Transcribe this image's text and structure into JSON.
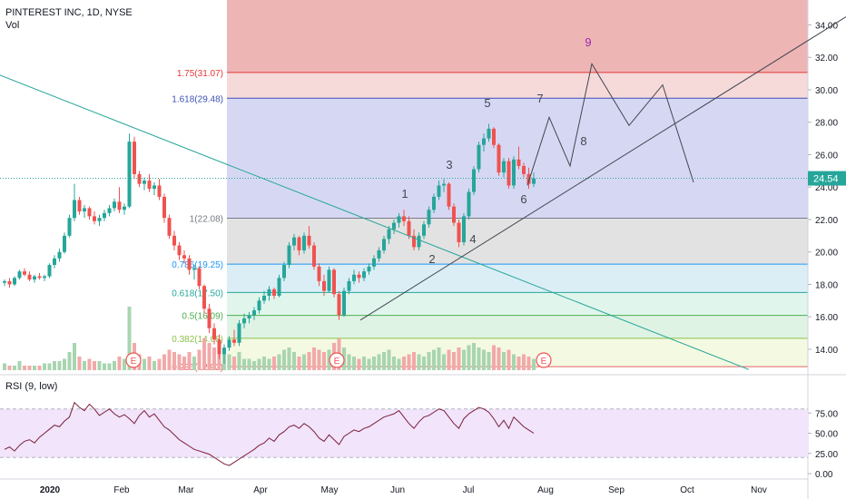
{
  "header": {
    "symbol_line": "PINTEREST INC, 1D, NYSE",
    "volume_label": "Vol",
    "rsi_label": "RSI (9, low)"
  },
  "chart_data": {
    "type": "candlestick",
    "title": "PINTEREST INC, 1D, NYSE",
    "price_axis": {
      "ticks": [
        "34.00",
        "32.00",
        "30.00",
        "28.00",
        "26.00",
        "24.00",
        "22.00",
        "20.00",
        "18.00",
        "16.00",
        "14.00"
      ],
      "ylim": [
        12.6,
        35.2
      ],
      "current_price": "24.54"
    },
    "rsi_axis": {
      "ticks": [
        "75.00",
        "50.00",
        "25.00",
        "0.00"
      ],
      "ylim": [
        0,
        100
      ],
      "band": [
        20,
        80
      ]
    },
    "time_axis": [
      "2020",
      "Feb",
      "Mar",
      "Apr",
      "May",
      "Jun",
      "Jul",
      "Aug",
      "Sep",
      "Oct",
      "Nov"
    ],
    "fib_levels": [
      {
        "label": "0.236(12.93)",
        "value": 12.93,
        "color": "#e06666"
      },
      {
        "label": "0.382(14.68)",
        "value": 14.68,
        "color": "#8bc34a"
      },
      {
        "label": "0.5(16.09)",
        "value": 16.09,
        "color": "#4caf50"
      },
      {
        "label": "0.618(17.50)",
        "value": 17.5,
        "color": "#26a69a"
      },
      {
        "label": "0.786(19.25)",
        "value": 19.25,
        "color": "#2196f3"
      },
      {
        "label": "1(22.08)",
        "value": 22.08,
        "color": "#787b86"
      },
      {
        "label": "1.618(29.48)",
        "value": 29.48,
        "color": "#3f51b5"
      },
      {
        "label": "1.75(31.07)",
        "value": 31.07,
        "color": "#e53935"
      }
    ],
    "wave_labels": [
      {
        "text": "1",
        "x": "late May",
        "y": 23.1
      },
      {
        "text": "2",
        "x": "early Jun",
        "y": 19.2
      },
      {
        "text": "3",
        "x": "mid Jun",
        "y": 24.8
      },
      {
        "text": "4",
        "x": "late Jun",
        "y": 20.0
      },
      {
        "text": "5",
        "x": "early Jul",
        "y": 27.6
      },
      {
        "text": "6",
        "x": "late Jul",
        "y": 23.2
      },
      {
        "text": "7",
        "x": "early Aug",
        "y": 28.4
      },
      {
        "text": "8",
        "x": "mid Aug",
        "y": 26.2
      },
      {
        "text": "9",
        "x": "late Aug",
        "y": 33.3
      }
    ],
    "earnings_markers": [
      "E",
      "E",
      "E"
    ],
    "candles": [
      [
        18.1,
        18.3,
        17.9,
        18.2
      ],
      [
        18.2,
        18.4,
        17.8,
        18.0
      ],
      [
        18.0,
        18.5,
        17.9,
        18.4
      ],
      [
        18.4,
        18.9,
        18.3,
        18.8
      ],
      [
        18.8,
        19.0,
        18.5,
        18.6
      ],
      [
        18.6,
        18.8,
        18.2,
        18.3
      ],
      [
        18.3,
        18.6,
        18.1,
        18.5
      ],
      [
        18.5,
        18.7,
        18.3,
        18.4
      ],
      [
        18.4,
        18.6,
        18.2,
        18.5
      ],
      [
        18.5,
        19.3,
        18.4,
        19.2
      ],
      [
        19.2,
        19.8,
        19.0,
        19.6
      ],
      [
        19.6,
        20.2,
        19.4,
        20.0
      ],
      [
        20.0,
        21.2,
        19.9,
        21.0
      ],
      [
        21.0,
        22.3,
        20.9,
        22.1
      ],
      [
        22.1,
        24.2,
        21.9,
        23.2
      ],
      [
        23.2,
        23.4,
        22.3,
        22.5
      ],
      [
        22.5,
        22.9,
        22.1,
        22.7
      ],
      [
        22.7,
        22.8,
        22.0,
        22.2
      ],
      [
        22.2,
        22.5,
        21.7,
        21.9
      ],
      [
        21.9,
        22.3,
        21.6,
        22.1
      ],
      [
        22.1,
        22.6,
        21.9,
        22.4
      ],
      [
        22.4,
        22.9,
        22.2,
        22.7
      ],
      [
        22.7,
        23.3,
        22.5,
        23.1
      ],
      [
        23.1,
        24.0,
        22.4,
        22.6
      ],
      [
        22.6,
        23.0,
        22.3,
        22.8
      ],
      [
        22.8,
        27.3,
        22.7,
        26.8
      ],
      [
        26.8,
        27.1,
        24.5,
        24.8
      ],
      [
        24.8,
        25.0,
        24.0,
        24.2
      ],
      [
        24.2,
        24.6,
        23.8,
        24.4
      ],
      [
        24.4,
        24.8,
        23.7,
        23.9
      ],
      [
        23.9,
        24.3,
        23.5,
        24.1
      ],
      [
        24.1,
        24.5,
        23.2,
        23.4
      ],
      [
        23.4,
        23.6,
        21.8,
        22.1
      ],
      [
        22.1,
        22.3,
        20.8,
        21.0
      ],
      [
        21.0,
        21.3,
        20.1,
        20.4
      ],
      [
        20.4,
        20.6,
        19.5,
        19.8
      ],
      [
        19.8,
        20.1,
        19.3,
        19.6
      ],
      [
        19.6,
        19.8,
        18.6,
        18.9
      ],
      [
        18.9,
        19.2,
        18.3,
        19.0
      ],
      [
        19.0,
        19.1,
        17.7,
        17.9
      ],
      [
        17.9,
        18.0,
        16.2,
        16.5
      ],
      [
        16.5,
        16.8,
        15.0,
        15.3
      ],
      [
        15.3,
        15.6,
        14.3,
        14.6
      ],
      [
        14.6,
        14.9,
        13.4,
        13.7
      ],
      [
        13.7,
        14.3,
        13.1,
        14.1
      ],
      [
        14.1,
        14.8,
        13.9,
        14.6
      ],
      [
        14.6,
        15.2,
        14.2,
        14.4
      ],
      [
        14.4,
        15.8,
        14.2,
        15.6
      ],
      [
        15.6,
        16.2,
        15.3,
        15.9
      ],
      [
        15.9,
        16.3,
        15.6,
        16.1
      ],
      [
        16.1,
        16.6,
        15.8,
        16.4
      ],
      [
        16.4,
        17.2,
        16.2,
        17.0
      ],
      [
        17.0,
        17.6,
        16.8,
        17.3
      ],
      [
        17.3,
        17.9,
        17.0,
        17.7
      ],
      [
        17.7,
        17.8,
        17.1,
        17.3
      ],
      [
        17.3,
        18.6,
        17.2,
        18.4
      ],
      [
        18.4,
        19.4,
        18.2,
        19.2
      ],
      [
        19.2,
        20.6,
        19.0,
        20.4
      ],
      [
        20.4,
        21.1,
        20.1,
        20.9
      ],
      [
        20.9,
        21.0,
        19.8,
        20.1
      ],
      [
        20.1,
        21.2,
        19.9,
        21.0
      ],
      [
        21.0,
        21.6,
        20.2,
        20.4
      ],
      [
        20.4,
        20.6,
        18.9,
        19.1
      ],
      [
        19.1,
        19.3,
        17.9,
        18.2
      ],
      [
        18.2,
        18.6,
        17.3,
        17.6
      ],
      [
        17.6,
        19.1,
        17.5,
        18.9
      ],
      [
        18.9,
        19.0,
        17.2,
        17.4
      ],
      [
        17.4,
        17.6,
        15.8,
        16.1
      ],
      [
        16.1,
        17.8,
        16.0,
        17.6
      ],
      [
        17.6,
        18.4,
        17.4,
        18.2
      ],
      [
        18.2,
        18.9,
        18.0,
        18.6
      ],
      [
        18.6,
        18.8,
        18.1,
        18.4
      ],
      [
        18.4,
        19.0,
        18.2,
        18.8
      ],
      [
        18.8,
        19.3,
        18.6,
        19.1
      ],
      [
        19.1,
        19.8,
        18.9,
        19.6
      ],
      [
        19.6,
        20.3,
        19.4,
        20.1
      ],
      [
        20.1,
        21.0,
        19.9,
        20.8
      ],
      [
        20.8,
        21.6,
        20.5,
        21.4
      ],
      [
        21.4,
        22.0,
        21.1,
        21.8
      ],
      [
        21.8,
        22.4,
        21.5,
        22.2
      ],
      [
        22.2,
        22.6,
        21.6,
        21.9
      ],
      [
        21.9,
        22.2,
        20.8,
        21.0
      ],
      [
        21.0,
        21.4,
        20.1,
        20.3
      ],
      [
        20.3,
        21.2,
        20.1,
        21.0
      ],
      [
        21.0,
        21.9,
        20.8,
        21.7
      ],
      [
        21.7,
        22.8,
        21.5,
        22.6
      ],
      [
        22.6,
        23.6,
        22.4,
        23.4
      ],
      [
        23.4,
        24.4,
        23.2,
        24.1
      ],
      [
        24.1,
        24.5,
        23.7,
        24.2
      ],
      [
        24.2,
        24.3,
        22.6,
        22.8
      ],
      [
        22.8,
        23.0,
        21.6,
        21.8
      ],
      [
        21.8,
        22.0,
        20.3,
        20.6
      ],
      [
        20.6,
        22.4,
        20.4,
        22.2
      ],
      [
        22.2,
        23.9,
        22.0,
        23.7
      ],
      [
        23.7,
        25.3,
        23.5,
        25.1
      ],
      [
        25.1,
        26.8,
        24.9,
        26.6
      ],
      [
        26.6,
        27.3,
        26.2,
        27.0
      ],
      [
        27.0,
        27.9,
        26.8,
        27.6
      ],
      [
        27.6,
        27.7,
        26.4,
        26.6
      ],
      [
        26.6,
        26.7,
        24.7,
        24.9
      ],
      [
        24.9,
        25.8,
        24.6,
        25.6
      ],
      [
        25.6,
        25.8,
        23.9,
        24.1
      ],
      [
        24.1,
        25.9,
        23.9,
        25.7
      ],
      [
        25.7,
        26.5,
        25.1,
        25.3
      ],
      [
        25.3,
        25.5,
        24.6,
        24.8
      ],
      [
        24.8,
        25.2,
        23.9,
        24.2
      ],
      [
        24.2,
        24.9,
        24.0,
        24.54
      ]
    ],
    "rsi": [
      30,
      33,
      28,
      35,
      40,
      42,
      38,
      45,
      50,
      55,
      60,
      58,
      65,
      70,
      88,
      82,
      78,
      86,
      80,
      72,
      76,
      80,
      74,
      70,
      73,
      68,
      62,
      72,
      78,
      70,
      74,
      66,
      58,
      54,
      48,
      42,
      38,
      34,
      30,
      28,
      26,
      24,
      20,
      16,
      12,
      10,
      14,
      18,
      22,
      26,
      30,
      35,
      38,
      44,
      40,
      48,
      52,
      58,
      60,
      56,
      62,
      58,
      52,
      44,
      40,
      48,
      42,
      36,
      46,
      50,
      54,
      52,
      56,
      58,
      62,
      66,
      70,
      72,
      74,
      78,
      70,
      62,
      56,
      64,
      70,
      72,
      76,
      80,
      78,
      70,
      62,
      56,
      68,
      74,
      78,
      82,
      80,
      76,
      68,
      58,
      66,
      56,
      70,
      64,
      58,
      54,
      50
    ]
  }
}
